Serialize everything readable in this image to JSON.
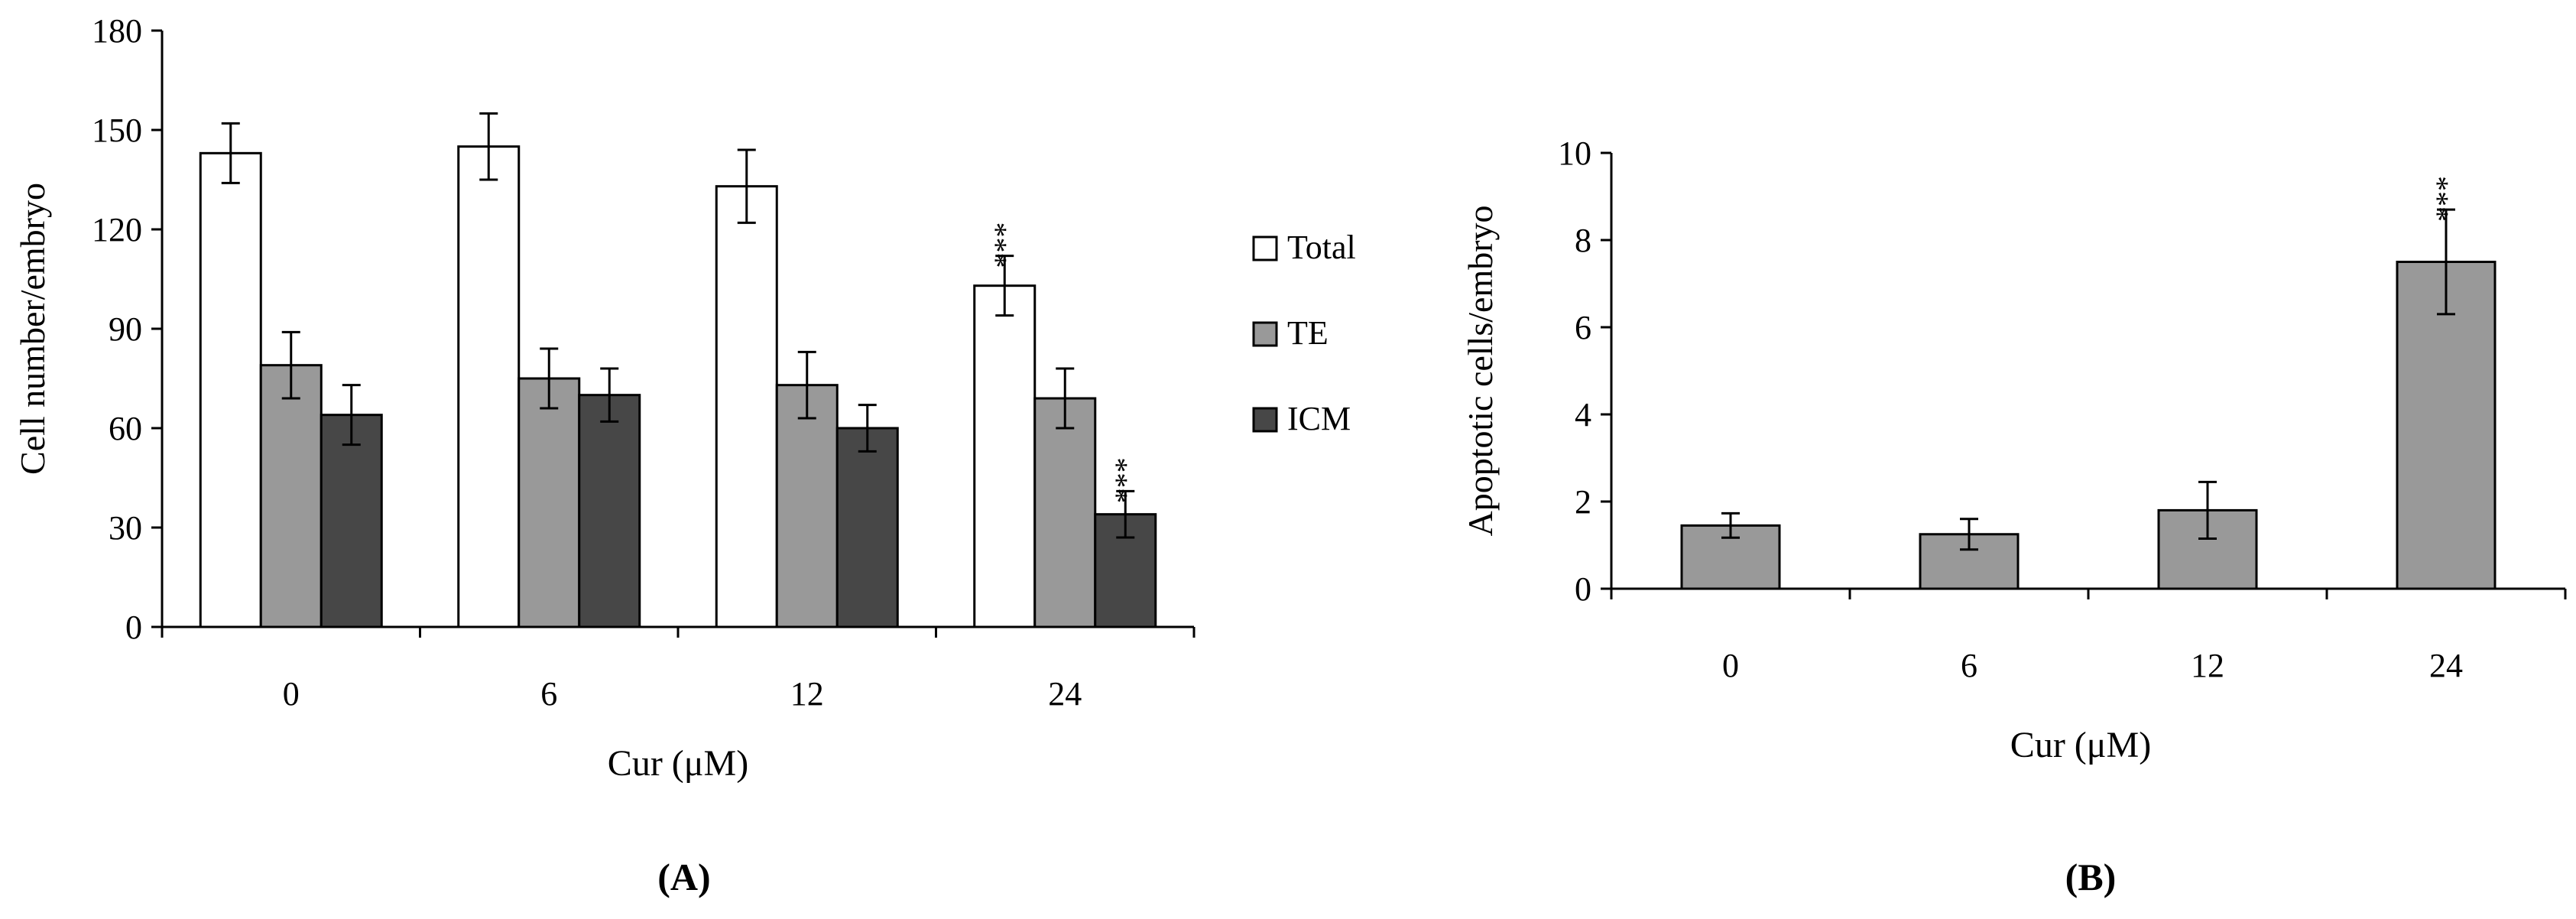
{
  "chart_data": [
    {
      "type": "bar",
      "panel_label": "(A)",
      "xlabel": "Cur (μM)",
      "ylabel": "Cell number/embryo",
      "ylim": [
        0,
        180
      ],
      "yticks": [
        "0",
        "30",
        "60",
        "90",
        "120",
        "150",
        "180"
      ],
      "categories": [
        "0",
        "6",
        "12",
        "24"
      ],
      "legend_position": "right",
      "series": [
        {
          "name": "Total",
          "color": "#ffffff",
          "values": [
            143,
            145,
            133,
            103
          ],
          "errors": [
            9,
            10,
            11,
            9
          ],
          "annotations": [
            "",
            "",
            "",
            "***"
          ]
        },
        {
          "name": "TE",
          "color": "#999999",
          "values": [
            79,
            75,
            73,
            69
          ],
          "errors": [
            10,
            9,
            10,
            9
          ],
          "annotations": [
            "",
            "",
            "",
            ""
          ]
        },
        {
          "name": "ICM",
          "color": "#474747",
          "values": [
            64,
            70,
            60,
            34
          ],
          "errors": [
            9,
            8,
            7,
            7
          ],
          "annotations": [
            "",
            "",
            "",
            "***"
          ]
        }
      ]
    },
    {
      "type": "bar",
      "panel_label": "(B)",
      "xlabel": "Cur (μM)",
      "ylabel": "Apoptotic cells/embryo",
      "ylim": [
        0,
        10
      ],
      "yticks": [
        "0",
        "2",
        "4",
        "6",
        "8",
        "10"
      ],
      "categories": [
        "0",
        "6",
        "12",
        "24"
      ],
      "series": [
        {
          "name": "Apoptotic cells",
          "color": "#999999",
          "values": [
            1.45,
            1.25,
            1.8,
            7.5
          ],
          "errors": [
            0.28,
            0.35,
            0.65,
            1.2
          ],
          "annotations": [
            "",
            "",
            "",
            "***"
          ]
        }
      ]
    }
  ]
}
